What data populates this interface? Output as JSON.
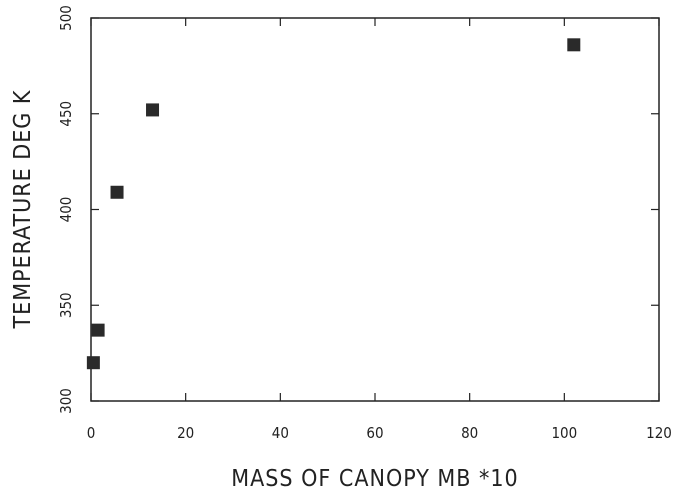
{
  "chart_data": {
    "type": "scatter",
    "title": "",
    "xlabel": "MASS OF CANOPY   MB   *10",
    "ylabel": "TEMPERATURE   DEG K",
    "xlim": [
      0,
      120
    ],
    "ylim": [
      300,
      500
    ],
    "xticks": [
      0,
      20,
      40,
      60,
      80,
      100,
      120
    ],
    "yticks": [
      300,
      350,
      400,
      450,
      500
    ],
    "grid": false,
    "marker": "filled-square",
    "color": "#2a2a2a",
    "series": [
      {
        "points": [
          {
            "x": 0.5,
            "y": 320
          },
          {
            "x": 1.5,
            "y": 337
          },
          {
            "x": 5.5,
            "y": 409
          },
          {
            "x": 13,
            "y": 452
          },
          {
            "x": 102,
            "y": 486
          }
        ]
      }
    ]
  }
}
